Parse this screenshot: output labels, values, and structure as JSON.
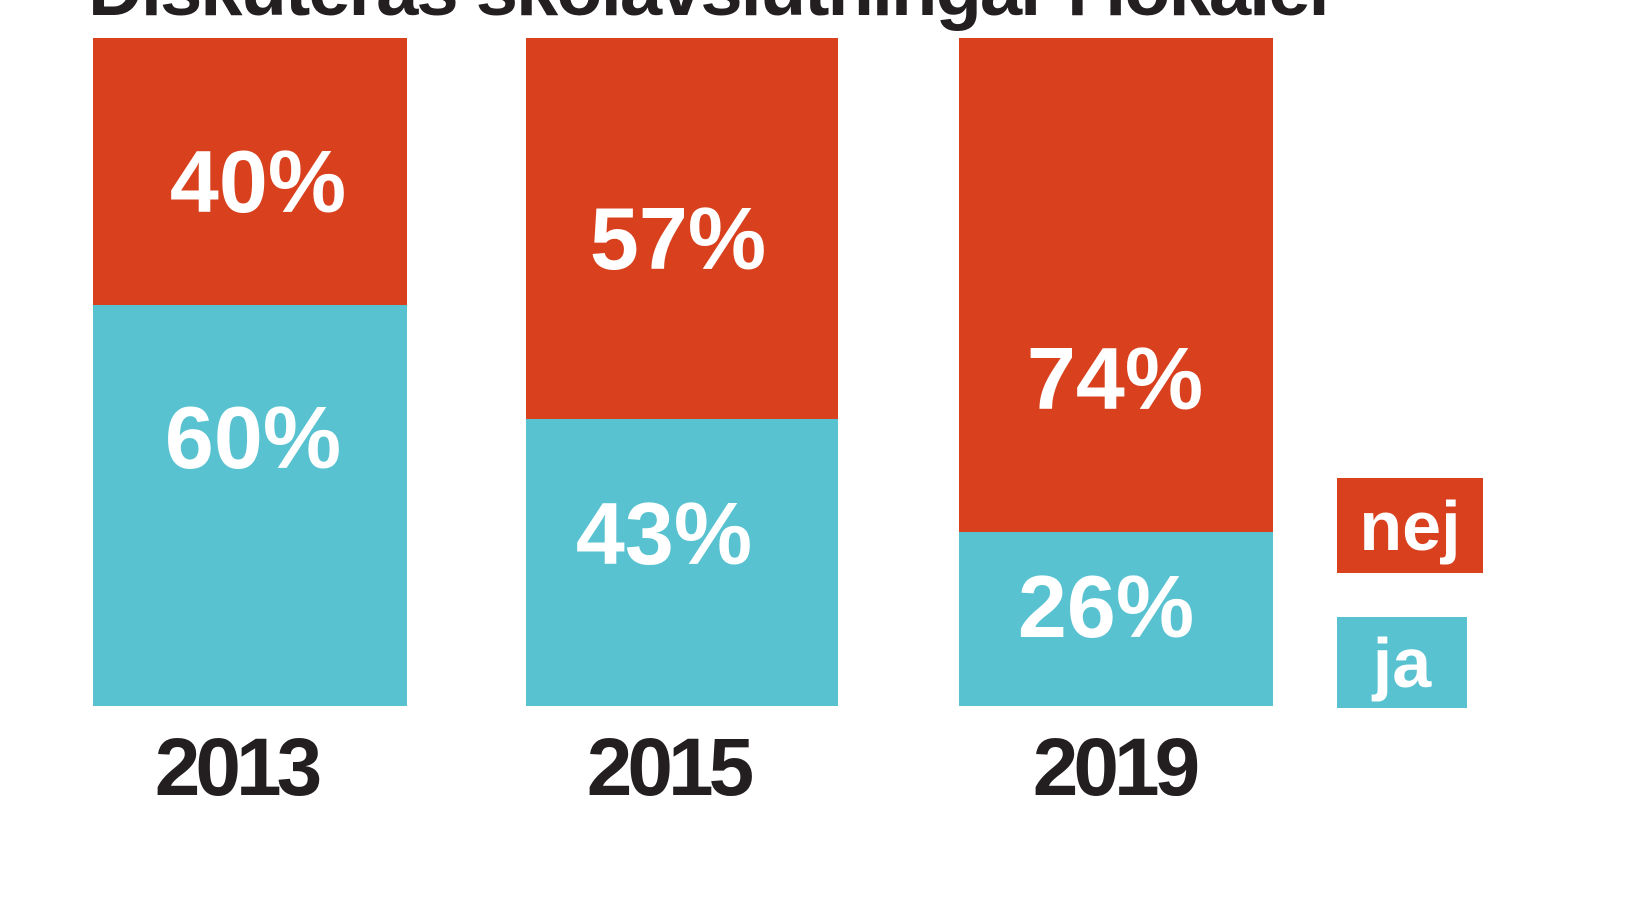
{
  "title": {
    "text": "Diskuteras skolavslutningar i lokaler",
    "visible_state": "clipped at top edge of image"
  },
  "chart_data": {
    "type": "bar",
    "subtype": "stacked-percentage-columns",
    "title": "Diskuteras skolavslutningar i lokaler",
    "categories": [
      "2013",
      "2015",
      "2019"
    ],
    "series": [
      {
        "name": "nej",
        "color": "#d9411e",
        "values": [
          40,
          57,
          74
        ]
      },
      {
        "name": "ja",
        "color": "#58c2d1",
        "values": [
          60,
          43,
          26
        ]
      }
    ],
    "value_labels": [
      [
        "40%",
        "60%"
      ],
      [
        "57%",
        "43%"
      ],
      [
        "74%",
        "26%"
      ]
    ],
    "legend": {
      "position": "right",
      "entries": [
        {
          "label": "nej",
          "color": "#d9411e"
        },
        {
          "label": "ja",
          "color": "#58c2d1"
        }
      ]
    },
    "ylim": [
      0,
      100
    ],
    "grid": false,
    "axis_labels": {
      "xlabel": "",
      "ylabel": ""
    }
  },
  "colors": {
    "background": "#ffffff",
    "text_dark": "#231f20",
    "label_white": "#ffffff"
  }
}
